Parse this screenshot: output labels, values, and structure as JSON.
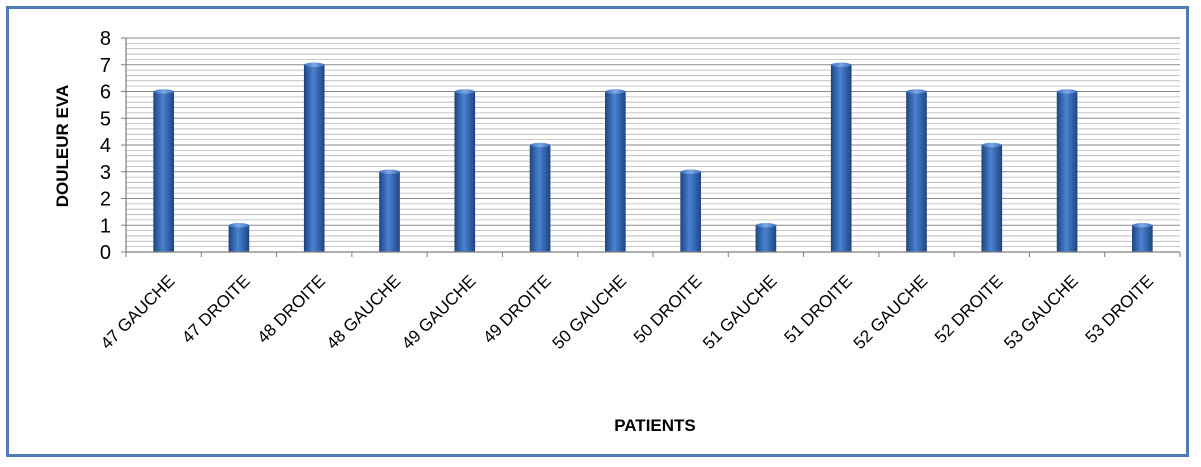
{
  "chart_data": {
    "type": "bar",
    "title": "",
    "xlabel": "PATIENTS",
    "ylabel": "DOULEUR EVA",
    "ylim": [
      0,
      8
    ],
    "yticks": [
      0,
      1,
      2,
      3,
      4,
      5,
      6,
      7,
      8
    ],
    "minor_grid_step": 0.2,
    "grid": true,
    "legend": "none",
    "bar_color": "#2f5fa6",
    "categories": [
      "47 GAUCHE",
      "47 DROITE",
      "48 DROITE",
      "48 GAUCHE",
      "49 GAUCHE",
      "49 DROITE",
      "50 GAUCHE",
      "50 DROITE",
      "51 GAUCHE",
      "51 DROITE",
      "52 GAUCHE",
      "52 DROITE",
      "53 GAUCHE",
      "53 DROITE"
    ],
    "values": [
      6,
      1,
      7,
      3,
      6,
      4,
      6,
      3,
      1,
      7,
      6,
      4,
      6,
      1
    ]
  },
  "colors": {
    "frame_border": "#4f7ab4",
    "bar_dark": "#1f4785",
    "bar_mid": "#3a6fc0",
    "bar_light": "#6a98dc",
    "grid": "#9a9a9a"
  }
}
